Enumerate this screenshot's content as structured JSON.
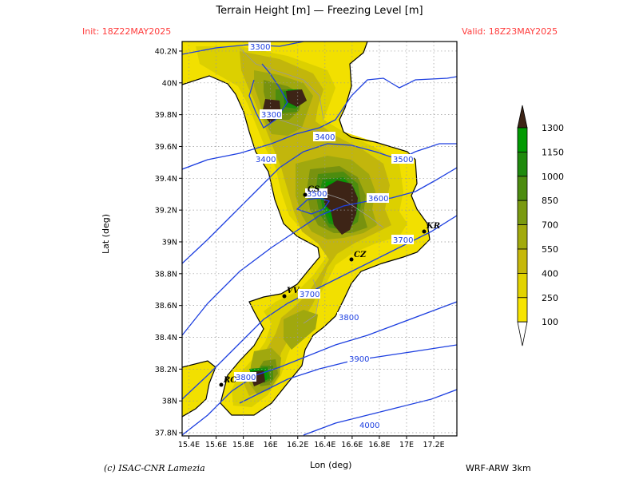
{
  "header": {
    "title": "Terrain Height [m] — Freezing Level [m]",
    "init": "Init: 18Z22MAY2025",
    "valid": "Valid: 18Z23MAY2025"
  },
  "axes": {
    "xlabel": "Lon (deg)",
    "ylabel": "Lat (deg)",
    "lon_ticks": [
      "15.4E",
      "15.6E",
      "15.8E",
      "16E",
      "16.2E",
      "16.4E",
      "16.6E",
      "16.8E",
      "17E",
      "17.2E"
    ],
    "lat_ticks": [
      "40.2N",
      "40N",
      "39.8N",
      "39.6N",
      "39.4N",
      "39.2N",
      "39N",
      "38.8N",
      "38.6N",
      "38.4N",
      "38.2N",
      "38N",
      "37.8N"
    ],
    "lon_range": [
      15.35,
      17.37
    ],
    "lat_range": [
      37.78,
      40.26
    ]
  },
  "legend": {
    "levels": [
      "1300",
      "1150",
      "1000",
      "850",
      "700",
      "550",
      "400",
      "250",
      "100"
    ],
    "colors": [
      "#3d2416",
      "#019a02",
      "#1f8a0d",
      "#4c8c0f",
      "#7a9a10",
      "#a2aa0c",
      "#c6b80a",
      "#e2d300",
      "#f7e400"
    ]
  },
  "contours": {
    "color": "#1d3fe0",
    "labels": [
      "3300",
      "3300",
      "3400",
      "3400",
      "3500",
      "3500",
      "3600",
      "3700",
      "3700",
      "3800",
      "3800",
      "3900",
      "4000"
    ]
  },
  "cities": [
    "CS",
    "KR",
    "CZ",
    "VV",
    "RC"
  ],
  "footer": {
    "credit": "(c) ISAC-CNR Lamezia",
    "model": "WRF-ARW 3km"
  }
}
